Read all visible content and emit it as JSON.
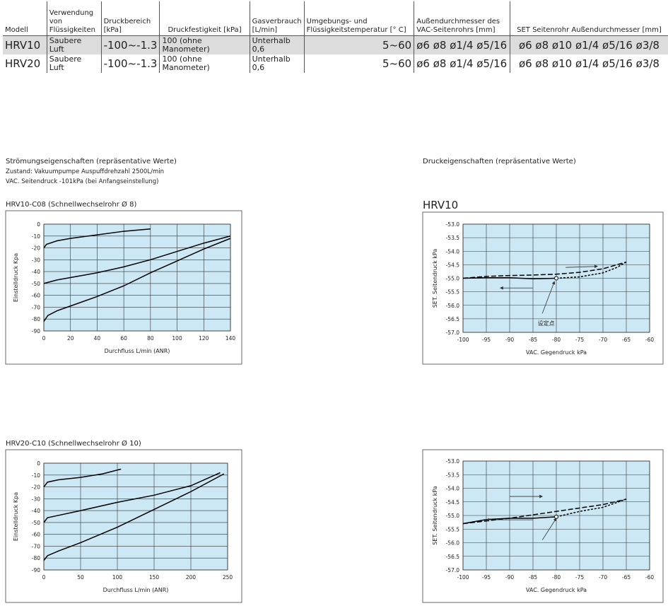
{
  "table": {
    "header": [
      "Modell",
      "Verwendung von Flüssigkeiten",
      "Druckbereich [kPa]",
      "Druckfestigkeit [kPa]",
      "Gasverbrauch [L/min]",
      "Umgebungs- und Flüssigkeitstemperatur [° C]",
      "Außendurchmesser des VAC-Seitenrohrs [mm]",
      "SET Seitenrohr Außendurchmesser [mm]"
    ],
    "rows": [
      [
        "HRV10",
        "Saubere Luft",
        "-100~-1.3",
        "100 (ohne Manometer)",
        "Unterhalb 0,6",
        "5~60",
        "ø6 ø8 ø1/4 ø5/16",
        "ø6 ø8 ø10 ø1/4 ø5/16 ø3/8"
      ],
      [
        "HRV20",
        "Saubere Luft",
        "-100~-1.3",
        "100 (ohne Manometer)",
        "Unterhalb 0,6",
        "5~60",
        "ø6 ø8 ø1/4 ø5/16",
        "ø6 ø8 ø10 ø1/4 ø5/16 ø3/8"
      ]
    ]
  },
  "flow_section": {
    "heading": "Strömungseigenschaften (repräsentative Werte)",
    "condition": "Zustand: Vakuumpumpe Auspuffdrehzahl 2500L/min",
    "pressure": "VAC. Seitendruck -101kPa (bei Anfangseinstellung)"
  },
  "pressure_section": {
    "heading": "Druckeigenschaften (repräsentative Werte)"
  },
  "chart_data": [
    {
      "type": "line",
      "title": "HRV10-C08 (Schnellwechselrohr Ø 8)",
      "xlabel": "Durchfluss L/min (ANR)",
      "ylabel": "Einstelldruck Kpa",
      "xlim": [
        0,
        140
      ],
      "xticks": [
        0,
        20,
        40,
        60,
        80,
        100,
        120,
        140
      ],
      "ylim": [
        -90,
        0
      ],
      "yticks": [
        0,
        -10,
        -20,
        -30,
        -40,
        -50,
        -60,
        -70,
        -80,
        -90
      ],
      "grid": true,
      "background": "#cce8f4",
      "series": [
        {
          "color": "#000000",
          "style": "solid",
          "x": [
            0,
            2,
            10,
            20,
            40,
            60,
            80
          ],
          "values": [
            -20,
            -17,
            -14,
            -12,
            -9,
            -6,
            -4
          ]
        },
        {
          "color": "#000000",
          "style": "solid",
          "x": [
            0,
            10,
            20,
            40,
            60,
            80,
            100,
            120,
            140
          ],
          "values": [
            -50,
            -47,
            -45,
            -41,
            -36,
            -30,
            -23,
            -16,
            -10
          ]
        },
        {
          "color": "#000000",
          "style": "solid",
          "x": [
            0,
            3,
            10,
            20,
            40,
            60,
            80,
            100,
            120,
            140
          ],
          "values": [
            -82,
            -77,
            -73,
            -69,
            -61,
            -52,
            -41,
            -31,
            -21,
            -12
          ]
        }
      ]
    },
    {
      "type": "line",
      "title": "HRV20-C10 (Schnellwechselrohr Ø 10)",
      "xlabel": "Durchfluss L/min (ANR)",
      "ylabel": "Einstelldruck Kpa",
      "xlim": [
        0,
        250
      ],
      "xticks": [
        0,
        50,
        100,
        150,
        200,
        250
      ],
      "ylim": [
        -90,
        0
      ],
      "yticks": [
        0,
        -10,
        -20,
        -30,
        -40,
        -50,
        -60,
        -70,
        -80,
        -90
      ],
      "grid": true,
      "background": "#cce8f4",
      "series": [
        {
          "color": "#000000",
          "style": "solid",
          "x": [
            0,
            5,
            20,
            50,
            80,
            105
          ],
          "values": [
            -20,
            -16,
            -14,
            -12,
            -9,
            -5
          ]
        },
        {
          "color": "#000000",
          "style": "solid",
          "x": [
            0,
            5,
            20,
            50,
            100,
            150,
            200,
            240
          ],
          "values": [
            -50,
            -46,
            -44,
            -40,
            -33,
            -27,
            -19,
            -8
          ]
        },
        {
          "color": "#000000",
          "style": "solid",
          "x": [
            0,
            5,
            20,
            50,
            100,
            150,
            200,
            245
          ],
          "values": [
            -82,
            -78,
            -74,
            -67,
            -54,
            -39,
            -24,
            -9
          ]
        }
      ]
    },
    {
      "type": "line",
      "title": "HRV10",
      "xlabel": "VAC. Gegendruck kPa",
      "ylabel": "SET. Seitendruck kPa",
      "xlim": [
        -100,
        -60
      ],
      "xticks": [
        -100,
        -95,
        -90,
        -85,
        -80,
        -75,
        -70,
        -65,
        -60
      ],
      "ylim": [
        -57,
        -53
      ],
      "yticks": [
        {
          "value": -53,
          "label": "-53.0"
        },
        -53.5,
        {
          "value": -54,
          "label": "-54.0"
        },
        -54.5,
        {
          "value": -55,
          "label": "-55.0"
        },
        -55.5,
        {
          "value": -56,
          "label": "-56.0"
        },
        -56.5,
        {
          "value": -57,
          "label": "-57.0"
        }
      ],
      "grid": true,
      "background": "#cce8f4",
      "annotation": "设定点",
      "setpoint": {
        "x": -80,
        "y": -55
      },
      "series": [
        {
          "color": "#000000",
          "style": "solid",
          "x": [
            -100,
            -95,
            -90,
            -85,
            -80
          ],
          "values": [
            -55,
            -54.98,
            -54.98,
            -55.02,
            -55
          ]
        },
        {
          "color": "#000000",
          "style": "dashed",
          "x": [
            -100,
            -95,
            -90,
            -85,
            -80,
            -75,
            -70,
            -65
          ],
          "values": [
            -55,
            -54.93,
            -54.9,
            -54.88,
            -54.85,
            -54.78,
            -54.65,
            -54.4
          ]
        },
        {
          "color": "#000000",
          "style": "dotted",
          "x": [
            -80,
            -75,
            -70,
            -67,
            -65
          ],
          "values": [
            -55,
            -54.95,
            -54.8,
            -54.6,
            -54.4
          ]
        }
      ]
    },
    {
      "type": "line",
      "xlabel": "VAC. Gegendruck kPa",
      "ylabel": "SET. Seitendruck kPa",
      "xlim": [
        -100,
        -60
      ],
      "xticks": [
        -100,
        -95,
        -90,
        -85,
        -80,
        -75,
        -70,
        -65,
        -60
      ],
      "ylim": [
        -57,
        -53
      ],
      "yticks": [
        {
          "value": -53,
          "label": "-53.0"
        },
        -53.5,
        {
          "value": -54,
          "label": "-54.0"
        },
        -54.5,
        {
          "value": -55,
          "label": "-55.0"
        },
        -55.5,
        {
          "value": -56,
          "label": "-56.0"
        },
        -56.5,
        {
          "value": -57,
          "label": "-57.0"
        }
      ],
      "grid": true,
      "background": "#cce8f4",
      "setpoint": {
        "x": -80,
        "y": -55.05
      },
      "series": [
        {
          "color": "#000000",
          "style": "solid",
          "x": [
            -100,
            -95,
            -90,
            -85,
            -80
          ],
          "values": [
            -55.3,
            -55.15,
            -55.1,
            -55.1,
            -55.05
          ]
        },
        {
          "color": "#000000",
          "style": "dashed",
          "x": [
            -100,
            -90,
            -80,
            -70,
            -65
          ],
          "values": [
            -55.3,
            -55.1,
            -54.85,
            -54.6,
            -54.4
          ]
        },
        {
          "color": "#000000",
          "style": "dotted",
          "x": [
            -80,
            -75,
            -70,
            -65
          ],
          "values": [
            -55.05,
            -54.85,
            -54.7,
            -54.4
          ]
        }
      ]
    }
  ]
}
